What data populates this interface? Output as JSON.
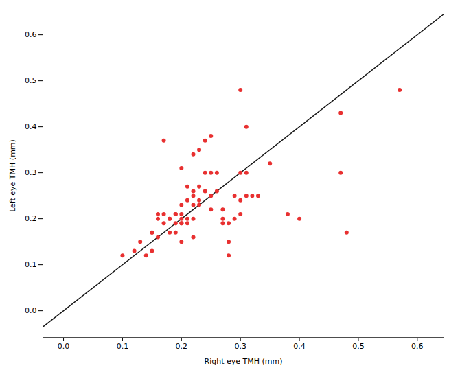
{
  "chart_data": {
    "type": "scatter",
    "xlabel": "Right eye TMH (mm)",
    "ylabel": "Left eye TMH (mm)",
    "xlim": [
      -0.035,
      0.645
    ],
    "ylim": [
      -0.058,
      0.645
    ],
    "xticks": [
      {
        "value": 0.0,
        "label": "0.0"
      },
      0.1,
      0.2,
      0.3,
      0.4,
      0.5,
      0.6
    ],
    "yticks": [
      {
        "value": 0.0,
        "label": "0.0"
      },
      0.1,
      0.2,
      0.3,
      0.4,
      0.5,
      0.6
    ],
    "grid": false,
    "series": [
      {
        "type": "line",
        "color": "#1a1a1a",
        "x": [
          -0.058,
          0.645
        ],
        "values": [
          -0.058,
          0.645
        ]
      },
      {
        "type": "scatter",
        "color": "#e83030",
        "x": [
          0.1,
          0.12,
          0.13,
          0.14,
          0.15,
          0.15,
          0.15,
          0.16,
          0.16,
          0.16,
          0.17,
          0.17,
          0.17,
          0.18,
          0.18,
          0.18,
          0.19,
          0.19,
          0.19,
          0.19,
          0.2,
          0.2,
          0.2,
          0.2,
          0.2,
          0.2,
          0.2,
          0.21,
          0.21,
          0.21,
          0.21,
          0.22,
          0.22,
          0.22,
          0.22,
          0.22,
          0.22,
          0.23,
          0.23,
          0.23,
          0.23,
          0.24,
          0.24,
          0.24,
          0.25,
          0.25,
          0.25,
          0.25,
          0.26,
          0.26,
          0.27,
          0.27,
          0.27,
          0.28,
          0.28,
          0.28,
          0.29,
          0.29,
          0.3,
          0.3,
          0.3,
          0.3,
          0.31,
          0.31,
          0.31,
          0.32,
          0.33,
          0.35,
          0.38,
          0.4,
          0.47,
          0.47,
          0.48,
          0.57
        ],
        "values": [
          0.12,
          0.13,
          0.15,
          0.12,
          0.17,
          0.17,
          0.13,
          0.21,
          0.2,
          0.16,
          0.37,
          0.21,
          0.19,
          0.2,
          0.2,
          0.17,
          0.21,
          0.19,
          0.21,
          0.17,
          0.31,
          0.23,
          0.2,
          0.19,
          0.21,
          0.19,
          0.15,
          0.24,
          0.27,
          0.2,
          0.19,
          0.34,
          0.26,
          0.25,
          0.23,
          0.2,
          0.16,
          0.35,
          0.27,
          0.24,
          0.23,
          0.37,
          0.3,
          0.26,
          0.38,
          0.3,
          0.25,
          0.22,
          0.3,
          0.26,
          0.2,
          0.22,
          0.19,
          0.19,
          0.15,
          0.12,
          0.25,
          0.2,
          0.48,
          0.3,
          0.24,
          0.21,
          0.3,
          0.25,
          0.4,
          0.25,
          0.25,
          0.32,
          0.21,
          0.2,
          0.43,
          0.3,
          0.17,
          0.48
        ]
      }
    ]
  }
}
